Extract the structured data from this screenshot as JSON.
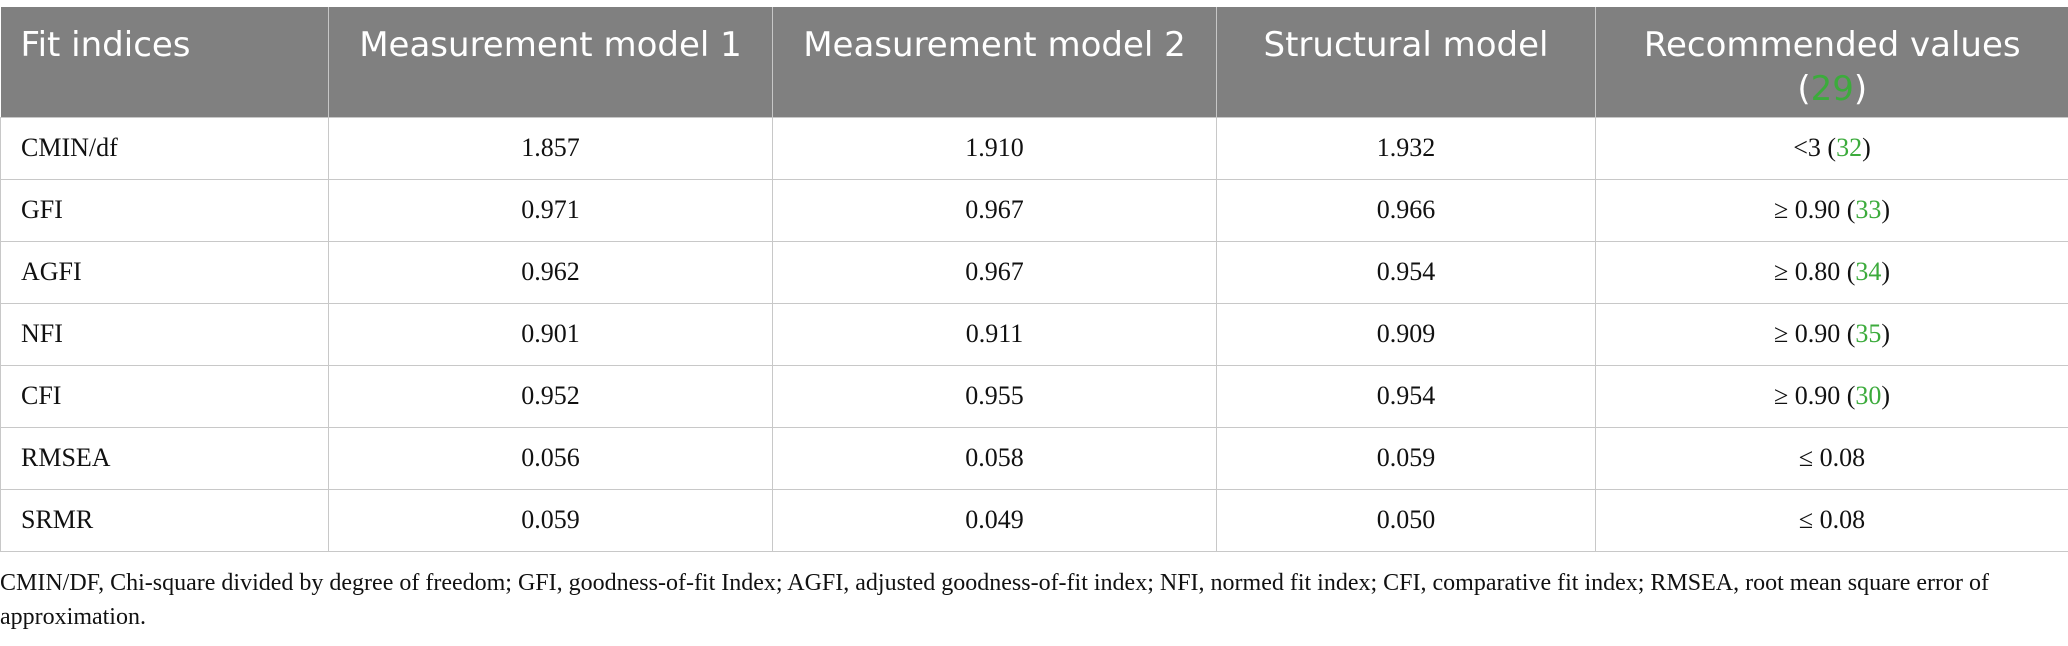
{
  "table": {
    "headers": [
      "Fit indices",
      "Measurement model 1",
      "Measurement model 2",
      "Structural model",
      "Recommended values"
    ],
    "header_ref": "29",
    "rows": [
      {
        "index": "CMIN/df",
        "m1": "1.857",
        "m2": "1.910",
        "sm": "1.932",
        "rec": "<3",
        "ref": "32"
      },
      {
        "index": "GFI",
        "m1": "0.971",
        "m2": "0.967",
        "sm": "0.966",
        "rec": "≥ 0.90",
        "ref": "33"
      },
      {
        "index": "AGFI",
        "m1": "0.962",
        "m2": "0.967",
        "sm": "0.954",
        "rec": "≥ 0.80",
        "ref": "34"
      },
      {
        "index": "NFI",
        "m1": "0.901",
        "m2": "0.911",
        "sm": "0.909",
        "rec": "≥ 0.90",
        "ref": "35"
      },
      {
        "index": "CFI",
        "m1": "0.952",
        "m2": "0.955",
        "sm": "0.954",
        "rec": "≥ 0.90",
        "ref": "30"
      },
      {
        "index": "RMSEA",
        "m1": "0.056",
        "m2": "0.058",
        "sm": "0.059",
        "rec": "≤ 0.08",
        "ref": ""
      },
      {
        "index": "SRMR",
        "m1": "0.059",
        "m2": "0.049",
        "sm": "0.050",
        "rec": "≤ 0.08",
        "ref": ""
      }
    ]
  },
  "footnote": "CMIN/DF, Chi-square divided by degree of freedom; GFI, goodness-of-fit Index; AGFI, adjusted goodness-of-fit index; NFI, normed fit index; CFI, comparative fit index; RMSEA, root mean square error of approximation.",
  "colors": {
    "header_bg": "#808080",
    "ref_link": "#3cab3c"
  }
}
